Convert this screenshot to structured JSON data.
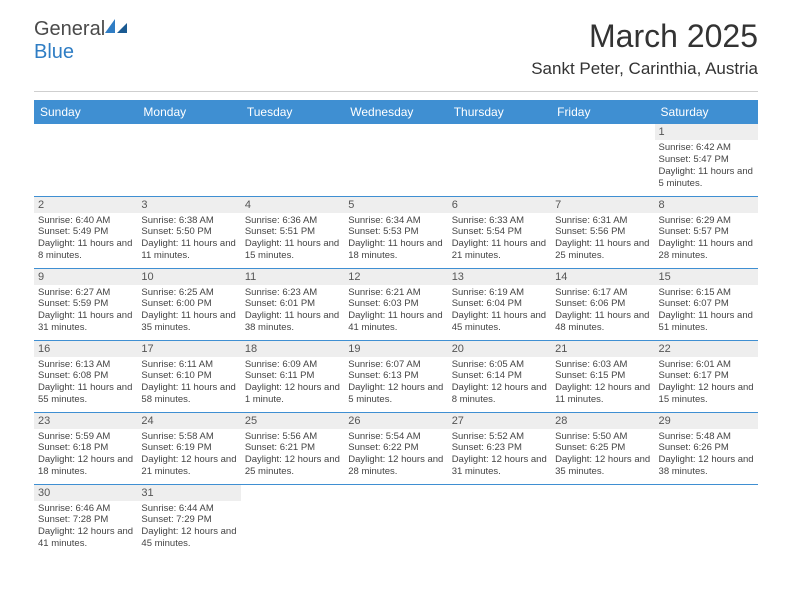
{
  "brand": {
    "part1": "General",
    "part2": "Blue"
  },
  "title": "March 2025",
  "location": "Sankt Peter, Carinthia, Austria",
  "theme": {
    "header_bg": "#3f8fd2",
    "rule": "#3f8fd2",
    "daynum_bg": "#eeeeee"
  },
  "columns": [
    "Sunday",
    "Monday",
    "Tuesday",
    "Wednesday",
    "Thursday",
    "Friday",
    "Saturday"
  ],
  "weeks": [
    [
      null,
      null,
      null,
      null,
      null,
      null,
      {
        "n": "1",
        "sr": "6:42 AM",
        "ss": "5:47 PM",
        "dl": "11 hours and 5 minutes."
      }
    ],
    [
      {
        "n": "2",
        "sr": "6:40 AM",
        "ss": "5:49 PM",
        "dl": "11 hours and 8 minutes."
      },
      {
        "n": "3",
        "sr": "6:38 AM",
        "ss": "5:50 PM",
        "dl": "11 hours and 11 minutes."
      },
      {
        "n": "4",
        "sr": "6:36 AM",
        "ss": "5:51 PM",
        "dl": "11 hours and 15 minutes."
      },
      {
        "n": "5",
        "sr": "6:34 AM",
        "ss": "5:53 PM",
        "dl": "11 hours and 18 minutes."
      },
      {
        "n": "6",
        "sr": "6:33 AM",
        "ss": "5:54 PM",
        "dl": "11 hours and 21 minutes."
      },
      {
        "n": "7",
        "sr": "6:31 AM",
        "ss": "5:56 PM",
        "dl": "11 hours and 25 minutes."
      },
      {
        "n": "8",
        "sr": "6:29 AM",
        "ss": "5:57 PM",
        "dl": "11 hours and 28 minutes."
      }
    ],
    [
      {
        "n": "9",
        "sr": "6:27 AM",
        "ss": "5:59 PM",
        "dl": "11 hours and 31 minutes."
      },
      {
        "n": "10",
        "sr": "6:25 AM",
        "ss": "6:00 PM",
        "dl": "11 hours and 35 minutes."
      },
      {
        "n": "11",
        "sr": "6:23 AM",
        "ss": "6:01 PM",
        "dl": "11 hours and 38 minutes."
      },
      {
        "n": "12",
        "sr": "6:21 AM",
        "ss": "6:03 PM",
        "dl": "11 hours and 41 minutes."
      },
      {
        "n": "13",
        "sr": "6:19 AM",
        "ss": "6:04 PM",
        "dl": "11 hours and 45 minutes."
      },
      {
        "n": "14",
        "sr": "6:17 AM",
        "ss": "6:06 PM",
        "dl": "11 hours and 48 minutes."
      },
      {
        "n": "15",
        "sr": "6:15 AM",
        "ss": "6:07 PM",
        "dl": "11 hours and 51 minutes."
      }
    ],
    [
      {
        "n": "16",
        "sr": "6:13 AM",
        "ss": "6:08 PM",
        "dl": "11 hours and 55 minutes."
      },
      {
        "n": "17",
        "sr": "6:11 AM",
        "ss": "6:10 PM",
        "dl": "11 hours and 58 minutes."
      },
      {
        "n": "18",
        "sr": "6:09 AM",
        "ss": "6:11 PM",
        "dl": "12 hours and 1 minute."
      },
      {
        "n": "19",
        "sr": "6:07 AM",
        "ss": "6:13 PM",
        "dl": "12 hours and 5 minutes."
      },
      {
        "n": "20",
        "sr": "6:05 AM",
        "ss": "6:14 PM",
        "dl": "12 hours and 8 minutes."
      },
      {
        "n": "21",
        "sr": "6:03 AM",
        "ss": "6:15 PM",
        "dl": "12 hours and 11 minutes."
      },
      {
        "n": "22",
        "sr": "6:01 AM",
        "ss": "6:17 PM",
        "dl": "12 hours and 15 minutes."
      }
    ],
    [
      {
        "n": "23",
        "sr": "5:59 AM",
        "ss": "6:18 PM",
        "dl": "12 hours and 18 minutes."
      },
      {
        "n": "24",
        "sr": "5:58 AM",
        "ss": "6:19 PM",
        "dl": "12 hours and 21 minutes."
      },
      {
        "n": "25",
        "sr": "5:56 AM",
        "ss": "6:21 PM",
        "dl": "12 hours and 25 minutes."
      },
      {
        "n": "26",
        "sr": "5:54 AM",
        "ss": "6:22 PM",
        "dl": "12 hours and 28 minutes."
      },
      {
        "n": "27",
        "sr": "5:52 AM",
        "ss": "6:23 PM",
        "dl": "12 hours and 31 minutes."
      },
      {
        "n": "28",
        "sr": "5:50 AM",
        "ss": "6:25 PM",
        "dl": "12 hours and 35 minutes."
      },
      {
        "n": "29",
        "sr": "5:48 AM",
        "ss": "6:26 PM",
        "dl": "12 hours and 38 minutes."
      }
    ],
    [
      {
        "n": "30",
        "sr": "6:46 AM",
        "ss": "7:28 PM",
        "dl": "12 hours and 41 minutes."
      },
      {
        "n": "31",
        "sr": "6:44 AM",
        "ss": "7:29 PM",
        "dl": "12 hours and 45 minutes."
      },
      null,
      null,
      null,
      null,
      null
    ]
  ],
  "labels": {
    "sunrise": "Sunrise: ",
    "sunset": "Sunset: ",
    "daylight": "Daylight: "
  }
}
